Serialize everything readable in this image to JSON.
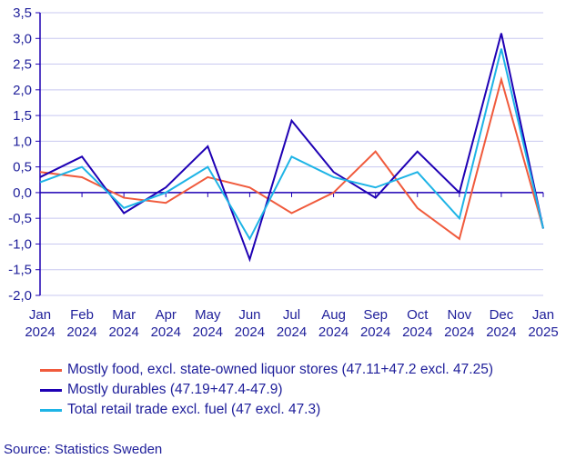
{
  "chart_data": {
    "type": "line",
    "title": "",
    "xlabel": "",
    "ylabel": "",
    "ylim": [
      -2.0,
      3.5
    ],
    "yticks": [
      "3,5",
      "3,0",
      "2,5",
      "2,0",
      "1,5",
      "1,0",
      "0,5",
      "0,0",
      "-0,5",
      "-1,0",
      "-1,5",
      "-2,0"
    ],
    "ytick_values": [
      3.5,
      3.0,
      2.5,
      2.0,
      1.5,
      1.0,
      0.5,
      0.0,
      -0.5,
      -1.0,
      -1.5,
      -2.0
    ],
    "grid": true,
    "legend_placement": "bottom",
    "categories": [
      [
        "Jan",
        "2024"
      ],
      [
        "Feb",
        "2024"
      ],
      [
        "Mar",
        "2024"
      ],
      [
        "Apr",
        "2024"
      ],
      [
        "May",
        "2024"
      ],
      [
        "Jun",
        "2024"
      ],
      [
        "Jul",
        "2024"
      ],
      [
        "Aug",
        "2024"
      ],
      [
        "Sep",
        "2024"
      ],
      [
        "Oct",
        "2024"
      ],
      [
        "Nov",
        "2024"
      ],
      [
        "Dec",
        "2024"
      ],
      [
        "Jan",
        "2025"
      ]
    ],
    "series": [
      {
        "name": "Mostly food, excl. state-owned liquor stores (47.11+47.2 excl. 47.25)",
        "color": "#f05a3c",
        "values": [
          0.4,
          0.3,
          -0.1,
          -0.2,
          0.3,
          0.1,
          -0.4,
          0.0,
          0.8,
          -0.3,
          -0.9,
          2.2,
          -0.7
        ]
      },
      {
        "name": "Mostly durables (47.19+47.4-47.9)",
        "color": "#1e00b4",
        "values": [
          0.3,
          0.7,
          -0.4,
          0.1,
          0.9,
          -1.3,
          1.4,
          0.4,
          -0.1,
          0.8,
          0.0,
          3.1,
          -0.7
        ]
      },
      {
        "name": "Total retail trade excl. fuel (47 excl. 47.3)",
        "color": "#1eb4e6",
        "values": [
          0.2,
          0.5,
          -0.3,
          0.0,
          0.5,
          -0.9,
          0.7,
          0.3,
          0.1,
          0.4,
          -0.5,
          2.8,
          -0.7
        ]
      }
    ],
    "colors": {
      "axis": "#1e00b4",
      "grid": "#c8c8f0",
      "text": "#1e1e9a"
    }
  },
  "source": "Source: Statistics Sweden"
}
